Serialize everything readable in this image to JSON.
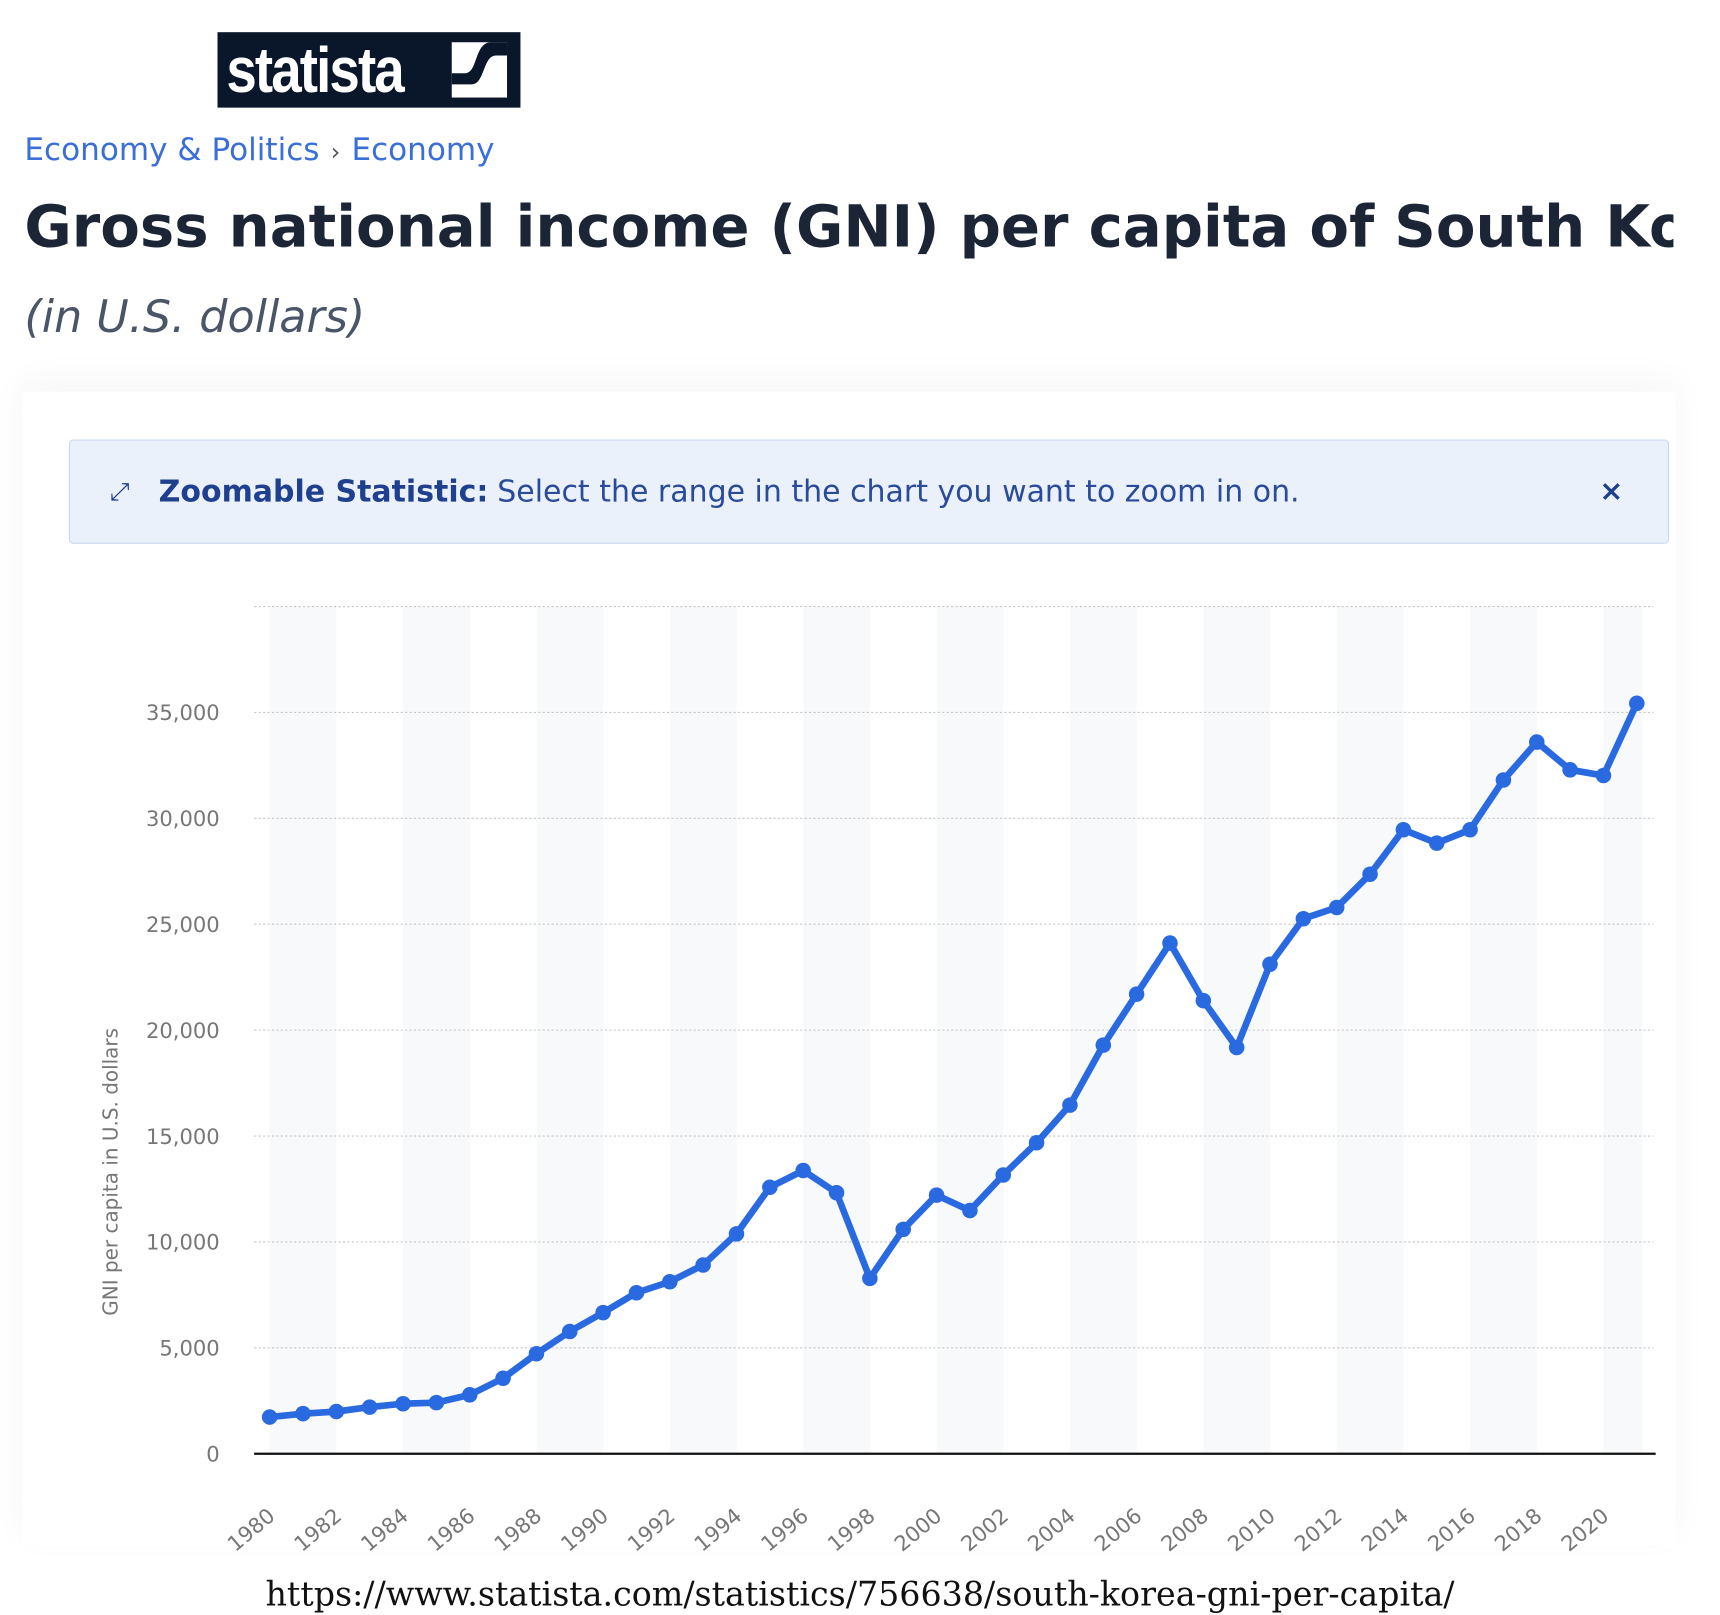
{
  "logo": {
    "text": "statista"
  },
  "breadcrumb": {
    "items": [
      "Economy & Politics",
      "Economy"
    ],
    "separator": "›"
  },
  "header": {
    "title": "Gross national income (GNI) per capita of South Korea fr",
    "subtitle": "(in U.S. dollars)"
  },
  "banner": {
    "icon": "expand-icon",
    "label": "Zoomable Statistic:",
    "message": "Select the range in the chart you want to zoom in on.",
    "close": "×"
  },
  "footer": {
    "url": "https://www.statista.com/statistics/756638/south-korea-gni-per-capita/"
  },
  "colors": {
    "line": "#2a6ae0",
    "banner_bg": "#eaf1fb",
    "accent": "#3a6fd8"
  },
  "chart_data": {
    "type": "line",
    "ylabel": "GNI per capita in U.S. dollars",
    "xlabel": "",
    "ylim": [
      0,
      40000
    ],
    "yticks": [
      0,
      5000,
      10000,
      15000,
      20000,
      25000,
      30000,
      35000
    ],
    "ytick_labels": [
      "0",
      "5,000",
      "10,000",
      "15,000",
      "20,000",
      "25,000",
      "30,000",
      "35,000"
    ],
    "xtick_labels": [
      "1980",
      "1982",
      "1984",
      "1986",
      "1988",
      "1990",
      "1992",
      "1994",
      "1996",
      "1998",
      "2000",
      "2002",
      "2004",
      "2006",
      "2008",
      "2010",
      "2012",
      "2014",
      "2016",
      "2018",
      "2020"
    ],
    "grid": true,
    "x": [
      1980,
      1981,
      1982,
      1983,
      1984,
      1985,
      1986,
      1987,
      1988,
      1989,
      1990,
      1991,
      1992,
      1993,
      1994,
      1995,
      1996,
      1997,
      1998,
      1999,
      2000,
      2001,
      2002,
      2003,
      2004,
      2005,
      2006,
      2007,
      2008,
      2009,
      2010,
      2011,
      2012,
      2013,
      2014,
      2015,
      2016,
      2017,
      2018,
      2019,
      2020,
      2021
    ],
    "values": [
      1730,
      1890,
      1990,
      2200,
      2360,
      2410,
      2780,
      3560,
      4720,
      5770,
      6660,
      7600,
      8120,
      8910,
      10380,
      12580,
      13370,
      12320,
      8280,
      10590,
      12210,
      11480,
      13160,
      14680,
      16460,
      19290,
      21700,
      24110,
      21390,
      19180,
      23110,
      25260,
      25790,
      27360,
      29460,
      28830,
      29460,
      31810,
      33600,
      32290,
      32020,
      35430
    ]
  }
}
